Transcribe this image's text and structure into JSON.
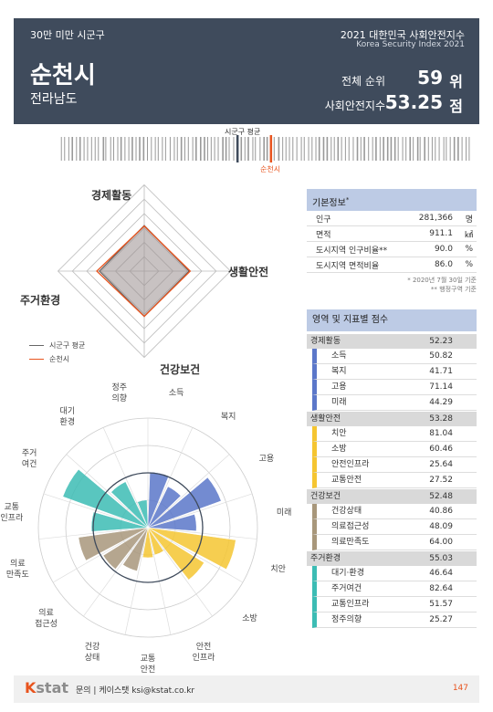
{
  "header": {
    "category": "30만 미만 시군구",
    "title_line1": "2021 대한민국 사회안전지수",
    "title_line2": "Korea Security Index 2021",
    "city": "순천시",
    "province": "전라남도",
    "rank_label": "전체 순위",
    "rank_value": "59",
    "rank_unit": "위",
    "index_label": "사회안전지수",
    "index_value": "53.25",
    "index_unit": "점"
  },
  "barcode": {
    "avg_label": "시군구 평균",
    "city_label": "순천시",
    "avg_pos": 0.43,
    "city_pos": 0.51,
    "accent": "#e8541e"
  },
  "radar": {
    "axes": [
      "경제활동",
      "생활안전",
      "건강보건",
      "주거환경"
    ],
    "avg": [
      53.0,
      52.0,
      52.5,
      52.0
    ],
    "city": [
      52.23,
      53.28,
      52.48,
      55.03
    ],
    "legend_avg": "시군구 평균",
    "legend_city": "순천시"
  },
  "rose": {
    "labels": [
      "소득",
      "복지",
      "고용",
      "미래",
      "치안",
      "소방",
      "안전인프라",
      "교통안전",
      "건강상태",
      "의료접근성",
      "의료만족도",
      "교통인프라",
      "주거여건",
      "대기환경",
      "정주의향"
    ],
    "display": [
      "소득",
      "복지",
      "고용",
      "미래",
      "치안",
      "소방",
      "안전\n인프라",
      "교통\n안전",
      "건강\n상태",
      "의료\n접근성",
      "의료\n만족도",
      "교통\n인프라",
      "주거\n여건",
      "대기\n환경",
      "정주\n의향"
    ],
    "values": [
      50.82,
      41.71,
      71.14,
      44.29,
      81.04,
      60.46,
      25.64,
      27.52,
      40.86,
      48.09,
      64.0,
      51.57,
      82.64,
      46.64,
      25.27
    ],
    "colors": [
      "#5b77c9",
      "#5b77c9",
      "#5b77c9",
      "#5b77c9",
      "#f5c531",
      "#f5c531",
      "#f5c531",
      "#f5c531",
      "#a8977b",
      "#a8977b",
      "#a8977b",
      "#3cbcb4",
      "#3cbcb4",
      "#3cbcb4",
      "#3cbcb4"
    ]
  },
  "basic": {
    "title": "기본정보",
    "title_mark": "*",
    "rows": [
      {
        "label": "인구",
        "value": "281,366",
        "unit": "명"
      },
      {
        "label": "면적",
        "value": "911.1",
        "unit": "㎢"
      },
      {
        "label": "도시지역 인구비율**",
        "value": "90.0",
        "unit": "%"
      },
      {
        "label": "도시지역 면적비율",
        "value": "86.0",
        "unit": "%"
      }
    ],
    "note1": "* 2020년 7월 30일 기준",
    "note2": "** 행정구역 기준"
  },
  "scores": {
    "title": "영역 및 지표별 점수",
    "groups": [
      {
        "name": "경제활동",
        "score": "52.23",
        "color": "#5b77c9",
        "items": [
          {
            "name": "소득",
            "score": "50.82"
          },
          {
            "name": "복지",
            "score": "41.71"
          },
          {
            "name": "고용",
            "score": "71.14"
          },
          {
            "name": "미래",
            "score": "44.29"
          }
        ]
      },
      {
        "name": "생활안전",
        "score": "53.28",
        "color": "#f5c531",
        "items": [
          {
            "name": "치안",
            "score": "81.04"
          },
          {
            "name": "소방",
            "score": "60.46"
          },
          {
            "name": "안전인프라",
            "score": "25.64"
          },
          {
            "name": "교통안전",
            "score": "27.52"
          }
        ]
      },
      {
        "name": "건강보건",
        "score": "52.48",
        "color": "#a8977b",
        "items": [
          {
            "name": "건강상태",
            "score": "40.86"
          },
          {
            "name": "의료접근성",
            "score": "48.09"
          },
          {
            "name": "의료만족도",
            "score": "64.00"
          }
        ]
      },
      {
        "name": "주거환경",
        "score": "55.03",
        "color": "#3cbcb4",
        "items": [
          {
            "name": "대기·환경",
            "score": "46.64"
          },
          {
            "name": "주거여건",
            "score": "82.64"
          },
          {
            "name": "교통인프라",
            "score": "51.57"
          },
          {
            "name": "정주의향",
            "score": "25.27"
          }
        ]
      }
    ]
  },
  "footer": {
    "logo": "Kstat",
    "contact": "문의 | 케이스탯",
    "email": "ksi@kstat.co.kr",
    "page": "147"
  }
}
